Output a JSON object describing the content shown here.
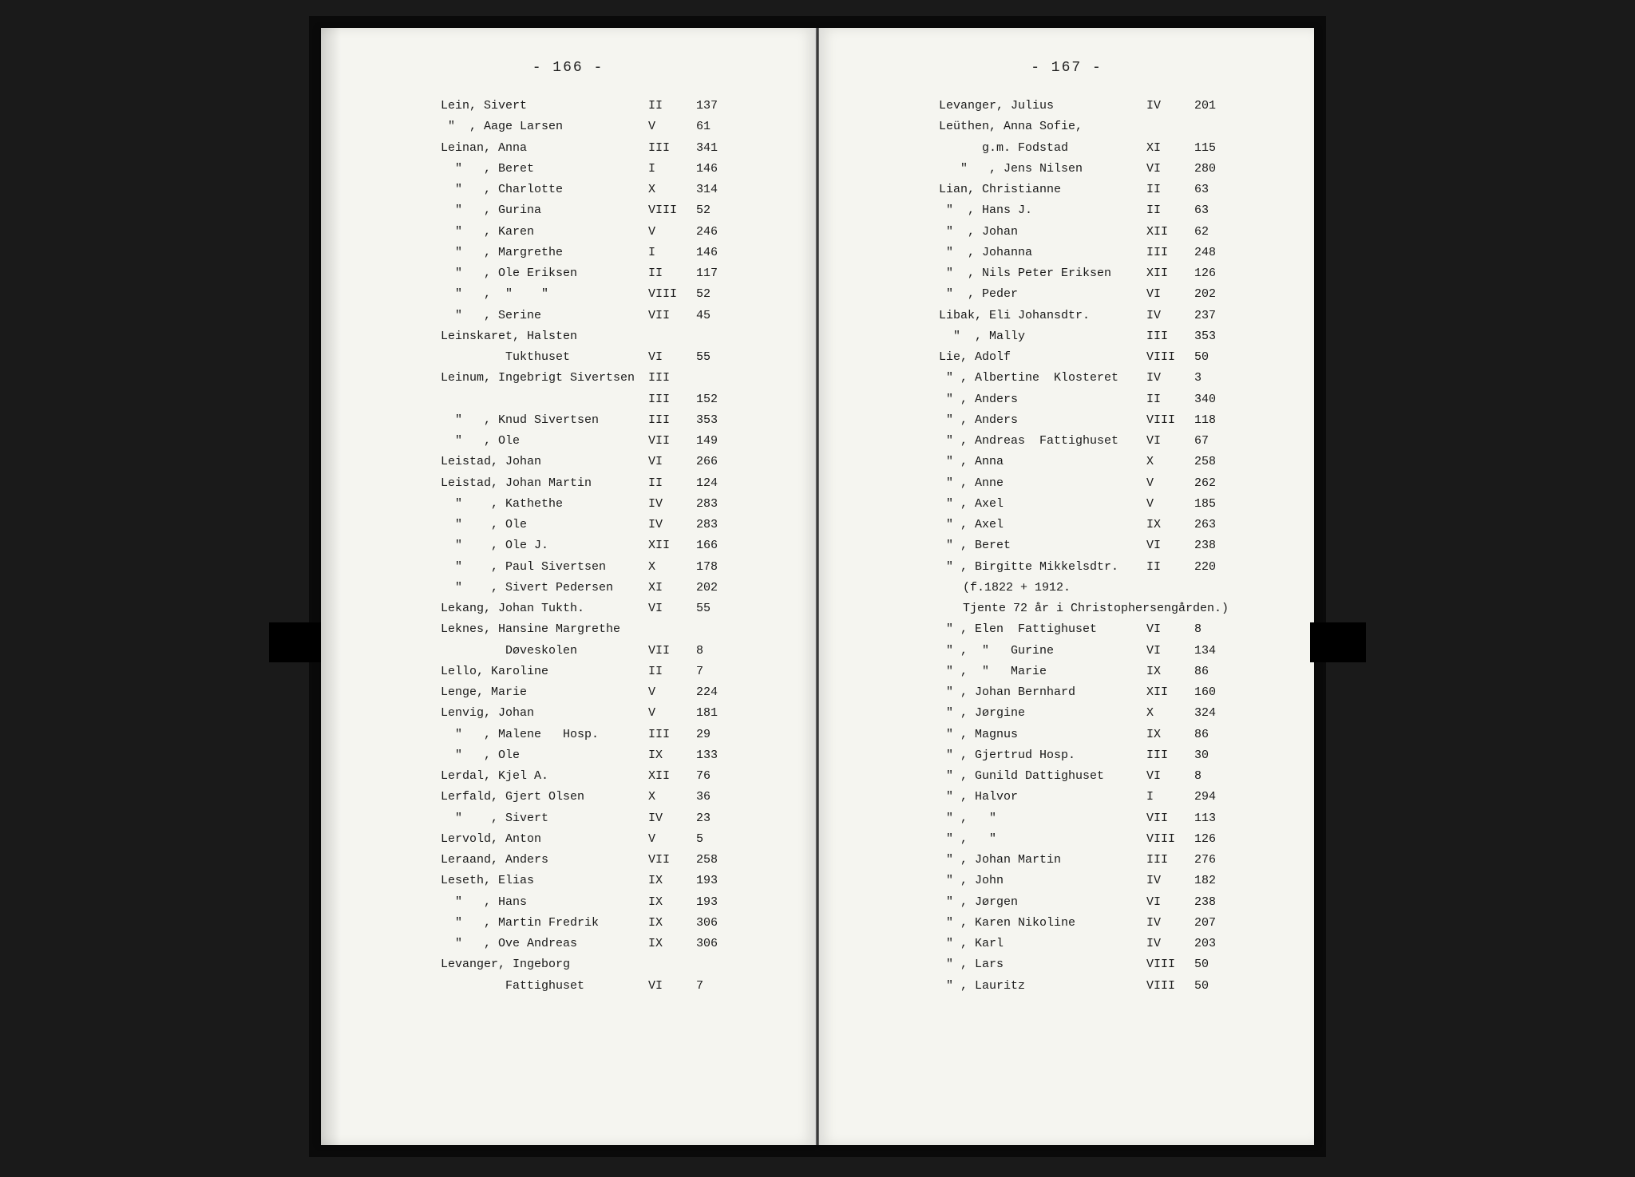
{
  "leftPage": {
    "pageNumber": "- 166 -",
    "entries": [
      {
        "name": "Lein, Sivert",
        "vol": "II",
        "page": "137"
      },
      {
        "name": " \"  , Aage Larsen",
        "vol": "V",
        "page": "61"
      },
      {
        "name": "Leinan, Anna",
        "vol": "III",
        "page": "341"
      },
      {
        "name": "  \"   , Beret",
        "vol": "I",
        "page": "146"
      },
      {
        "name": "  \"   , Charlotte",
        "vol": "X",
        "page": "314"
      },
      {
        "name": "  \"   , Gurina",
        "vol": "VIII",
        "page": "52"
      },
      {
        "name": "  \"   , Karen",
        "vol": "V",
        "page": "246"
      },
      {
        "name": "  \"   , Margrethe",
        "vol": "I",
        "page": "146"
      },
      {
        "name": "  \"   , Ole Eriksen",
        "vol": "II",
        "page": "117"
      },
      {
        "name": "  \"   ,  \"    \"",
        "vol": "VIII",
        "page": "52"
      },
      {
        "name": "  \"   , Serine",
        "vol": "VII",
        "page": "45"
      },
      {
        "name": "Leinskaret, Halsten",
        "vol": "",
        "page": ""
      },
      {
        "name": "         Tukthuset",
        "vol": "VI",
        "page": "55"
      },
      {
        "name": "Leinum, Ingebrigt Sivertsen",
        "vol": "III",
        "page": ""
      },
      {
        "name": "",
        "vol": "III",
        "page": "152"
      },
      {
        "name": "  \"   , Knud Sivertsen",
        "vol": "III",
        "page": "353"
      },
      {
        "name": "  \"   , Ole",
        "vol": "VII",
        "page": "149"
      },
      {
        "name": "Leistad, Johan",
        "vol": "VI",
        "page": "266"
      },
      {
        "name": "Leistad, Johan Martin",
        "vol": "II",
        "page": "124"
      },
      {
        "name": "  \"    , Kathethe",
        "vol": "IV",
        "page": "283"
      },
      {
        "name": "  \"    , Ole",
        "vol": "IV",
        "page": "283"
      },
      {
        "name": "  \"    , Ole J.",
        "vol": "XII",
        "page": "166"
      },
      {
        "name": "  \"    , Paul Sivertsen",
        "vol": "X",
        "page": "178"
      },
      {
        "name": "  \"    , Sivert Pedersen",
        "vol": "XI",
        "page": "202"
      },
      {
        "name": "Lekang, Johan Tukth.",
        "vol": "VI",
        "page": "55"
      },
      {
        "name": "Leknes, Hansine Margrethe",
        "vol": "",
        "page": ""
      },
      {
        "name": "         Døveskolen",
        "vol": "VII",
        "page": "8"
      },
      {
        "name": "Lello, Karoline",
        "vol": "II",
        "page": "7"
      },
      {
        "name": "Lenge, Marie",
        "vol": "V",
        "page": "224"
      },
      {
        "name": "Lenvig, Johan",
        "vol": "V",
        "page": "181"
      },
      {
        "name": "  \"   , Malene   Hosp.",
        "vol": "III",
        "page": "29"
      },
      {
        "name": "  \"   , Ole",
        "vol": "IX",
        "page": "133"
      },
      {
        "name": "Lerdal, Kjel A.",
        "vol": "XII",
        "page": "76"
      },
      {
        "name": "Lerfald, Gjert Olsen",
        "vol": "X",
        "page": "36"
      },
      {
        "name": "  \"    , Sivert",
        "vol": "IV",
        "page": "23"
      },
      {
        "name": "Lervold, Anton",
        "vol": "V",
        "page": "5"
      },
      {
        "name": "Leraand, Anders",
        "vol": "VII",
        "page": "258"
      },
      {
        "name": "Leseth, Elias",
        "vol": "IX",
        "page": "193"
      },
      {
        "name": "  \"   , Hans",
        "vol": "IX",
        "page": "193"
      },
      {
        "name": "  \"   , Martin Fredrik",
        "vol": "IX",
        "page": "306"
      },
      {
        "name": "  \"   , Ove Andreas",
        "vol": "IX",
        "page": "306"
      },
      {
        "name": "Levanger, Ingeborg",
        "vol": "",
        "page": ""
      },
      {
        "name": "         Fattighuset",
        "vol": "VI",
        "page": "7"
      }
    ]
  },
  "rightPage": {
    "pageNumber": "- 167 -",
    "entries": [
      {
        "name": "Levanger, Julius",
        "vol": "IV",
        "page": "201"
      },
      {
        "name": "Leüthen, Anna Sofie,",
        "vol": "",
        "page": ""
      },
      {
        "name": "      g.m. Fodstad",
        "vol": "XI",
        "page": "115"
      },
      {
        "name": "   \"   , Jens Nilsen",
        "vol": "VI",
        "page": "280"
      },
      {
        "name": "Lian, Christianne",
        "vol": "II",
        "page": "63"
      },
      {
        "name": " \"  , Hans J.",
        "vol": "II",
        "page": "63"
      },
      {
        "name": " \"  , Johan",
        "vol": "XII",
        "page": "62"
      },
      {
        "name": " \"  , Johanna",
        "vol": "III",
        "page": "248"
      },
      {
        "name": " \"  , Nils Peter Eriksen",
        "vol": "XII",
        "page": "126"
      },
      {
        "name": " \"  , Peder",
        "vol": "VI",
        "page": "202"
      },
      {
        "name": "Libak, Eli Johansdtr.",
        "vol": "IV",
        "page": "237"
      },
      {
        "name": "  \"  , Mally",
        "vol": "III",
        "page": "353"
      },
      {
        "name": "Lie, Adolf",
        "vol": "VIII",
        "page": "50"
      },
      {
        "name": " \" , Albertine  Klosteret",
        "vol": "IV",
        "page": "3"
      },
      {
        "name": " \" , Anders",
        "vol": "II",
        "page": "340"
      },
      {
        "name": " \" , Anders",
        "vol": "VIII",
        "page": "118"
      },
      {
        "name": " \" , Andreas  Fattighuset",
        "vol": "VI",
        "page": "67"
      },
      {
        "name": " \" , Anna",
        "vol": "X",
        "page": "258"
      },
      {
        "name": " \" , Anne",
        "vol": "V",
        "page": "262"
      },
      {
        "name": " \" , Axel",
        "vol": "V",
        "page": "185"
      },
      {
        "name": " \" , Axel",
        "vol": "IX",
        "page": "263"
      },
      {
        "name": " \" , Beret",
        "vol": "VI",
        "page": "238"
      },
      {
        "name": " \" , Birgitte Mikkelsdtr.",
        "vol": "II",
        "page": "220"
      },
      {
        "note": "(f.1822 + 1912."
      },
      {
        "note": "Tjente 72 år i Christophersengården.)"
      },
      {
        "name": " \" , Elen  Fattighuset",
        "vol": "VI",
        "page": "8"
      },
      {
        "name": " \" ,  \"   Gurine",
        "vol": "VI",
        "page": "134"
      },
      {
        "name": " \" ,  \"   Marie",
        "vol": "IX",
        "page": "86"
      },
      {
        "name": " \" , Johan Bernhard",
        "vol": "XII",
        "page": "160"
      },
      {
        "name": " \" , Jørgine",
        "vol": "X",
        "page": "324"
      },
      {
        "name": " \" , Magnus",
        "vol": "IX",
        "page": "86"
      },
      {
        "name": " \" , Gjertrud Hosp.",
        "vol": "III",
        "page": "30"
      },
      {
        "name": " \" , Gunild Dattighuset",
        "vol": "VI",
        "page": "8"
      },
      {
        "name": " \" , Halvor",
        "vol": "I",
        "page": "294"
      },
      {
        "name": " \" ,   \"",
        "vol": "VII",
        "page": "113"
      },
      {
        "name": " \" ,   \"",
        "vol": "VIII",
        "page": "126"
      },
      {
        "name": " \" , Johan Martin",
        "vol": "III",
        "page": "276"
      },
      {
        "name": " \" , John",
        "vol": "IV",
        "page": "182"
      },
      {
        "name": " \" , Jørgen",
        "vol": "VI",
        "page": "238"
      },
      {
        "name": " \" , Karen Nikoline",
        "vol": "IV",
        "page": "207"
      },
      {
        "name": " \" , Karl",
        "vol": "IV",
        "page": "203"
      },
      {
        "name": " \" , Lars",
        "vol": "VIII",
        "page": "50"
      },
      {
        "name": " \" , Lauritz",
        "vol": "VIII",
        "page": "50"
      }
    ]
  }
}
